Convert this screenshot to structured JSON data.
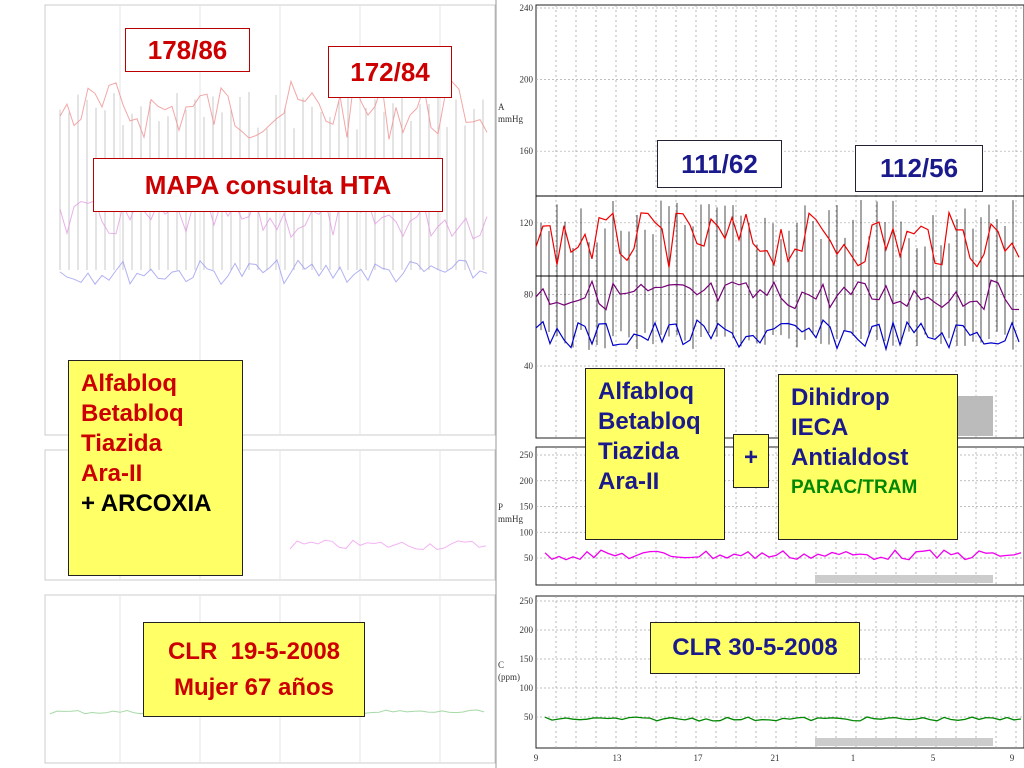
{
  "labels": {
    "bp_before_1": "178/86",
    "bp_before_2": "172/84",
    "title": "MAPA consulta HTA",
    "bp_after_1": "111/62",
    "bp_after_2": "112/56",
    "plus": "+",
    "case_before": [
      "CLR  19-5-2008",
      "Mujer 67 años"
    ],
    "case_after": "CLR 30-5-2008"
  },
  "treatment_before": [
    "Alfabloq",
    "Betabloq",
    "Tiazida",
    "Ara-II",
    "+ ARCOXIA"
  ],
  "treatment_kept": [
    "Alfabloq",
    "Betabloq",
    "Tiazida",
    "Ara-II"
  ],
  "treatment_added": [
    "Dihidrop",
    "IECA",
    "Antialdost",
    "PARAC/TRAM"
  ],
  "right_chart": {
    "pressure_axis": [
      "A",
      "mmHg"
    ],
    "pressure_ticks": [
      "240",
      "200",
      "160",
      "120",
      "80",
      "40"
    ],
    "pulse_pressure_axis": [
      "P",
      "mmHg"
    ],
    "pulse_pressure_ticks": [
      "250",
      "200",
      "150",
      "100",
      "50"
    ],
    "heart_rate_axis": [
      "C",
      "(ppm)"
    ],
    "heart_rate_ticks": [
      "250",
      "200",
      "150",
      "100",
      "50"
    ],
    "time_ticks": [
      "9",
      "13",
      "17",
      "21",
      "1",
      "5",
      "9"
    ]
  }
}
